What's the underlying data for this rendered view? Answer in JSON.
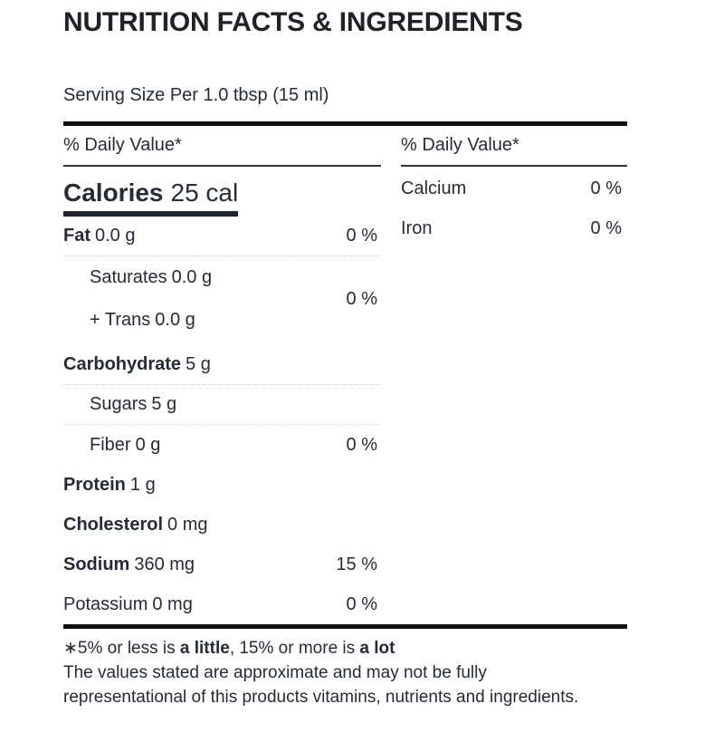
{
  "header": {
    "title": "NUTRITION FACTS & INGREDIENTS",
    "serving_size": "Serving Size Per 1.0 tbsp (15 ml)"
  },
  "facts": {
    "left": {
      "daily_value_header": "% Daily Value*",
      "calories_label": "Calories",
      "calories_value": "25 cal",
      "rows": [
        {
          "label": "Fat",
          "amount": "0.0 g",
          "dv": "0 %"
        },
        {
          "label": "Carbohydrate",
          "amount": "5 g",
          "dv": ""
        },
        {
          "label": "Sugars",
          "amount": "5 g",
          "dv": ""
        },
        {
          "label": "Fiber",
          "amount": "0 g",
          "dv": "0 %"
        },
        {
          "label": "Protein",
          "amount": "1 g",
          "dv": ""
        },
        {
          "label": "Cholesterol",
          "amount": "0 mg",
          "dv": ""
        },
        {
          "label": "Sodium",
          "amount": "360 mg",
          "dv": "15 %"
        },
        {
          "label": "Potassium",
          "amount": "0 mg",
          "dv": "0 %"
        }
      ],
      "fat_subgroup": {
        "saturates_label": "Saturates",
        "saturates_amount": "0.0 g",
        "trans_label": "+ Trans",
        "trans_amount": "0.0 g",
        "dv": "0 %"
      }
    },
    "right": {
      "daily_value_header": "% Daily Value*",
      "rows": [
        {
          "label": "Calcium",
          "dv": "0 %"
        },
        {
          "label": "Iron",
          "dv": "0 %"
        }
      ]
    }
  },
  "footnote": {
    "line1_prefix": "∗5% or less is ",
    "line1_bold1": "a little",
    "line1_mid": ", 15% or more is ",
    "line1_bold2": "a lot",
    "line2": "The values stated are approximate and may not be fully",
    "line3": "representational of this products vitamins, nutrients and ingredients."
  },
  "colors": {
    "text": "#252b37",
    "title": "#202227",
    "bar": "#0f0f10",
    "calbar": "#20252f",
    "rule": "#2e333e",
    "dots": "#cbced4"
  }
}
